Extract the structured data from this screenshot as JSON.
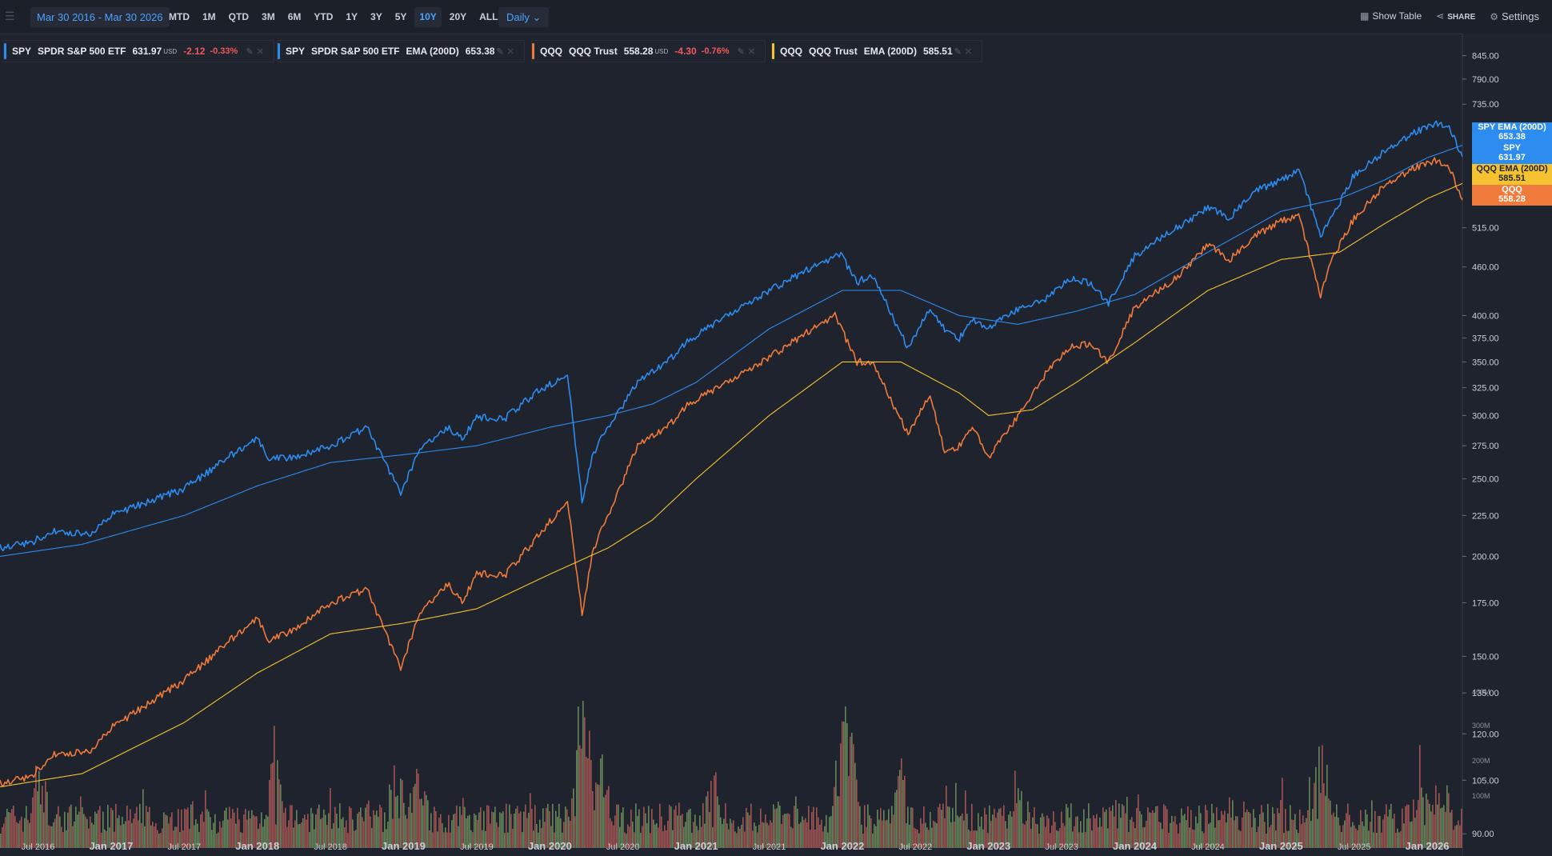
{
  "toolbar": {
    "date_range": "Mar 30 2016 - Mar 30 2026",
    "periods": [
      "MTD",
      "1M",
      "QTD",
      "3M",
      "6M",
      "YTD",
      "1Y",
      "3Y",
      "5Y",
      "10Y",
      "20Y",
      "ALL"
    ],
    "active_period": "10Y",
    "interval": "Daily",
    "show_table": "Show Table",
    "share": "SHARE",
    "settings": "Settings"
  },
  "legend": [
    {
      "symbol": "SPY",
      "name": "SPDR S&P 500 ETF",
      "value": "631.97",
      "unit": "USD",
      "change": "-2.12",
      "pct": "-0.33%",
      "color": "#2d8cf0"
    },
    {
      "symbol": "SPY",
      "name": "SPDR S&P 500 ETF",
      "indicator": "EMA (200D)",
      "value": "653.38",
      "color": "#2d8cf0"
    },
    {
      "symbol": "QQQ",
      "name": "QQQ Trust",
      "value": "558.28",
      "unit": "USD",
      "change": "-4.30",
      "pct": "-0.76%",
      "color": "#f07a3a"
    },
    {
      "symbol": "QQQ",
      "name": "QQQ Trust",
      "indicator": "EMA (200D)",
      "value": "585.51",
      "color": "#f5c232"
    }
  ],
  "price_tags": [
    {
      "label": "SPY EMA (200D)",
      "value": "653.38",
      "bg": "#2d8cf0",
      "fg": "#ffffff"
    },
    {
      "label": "SPY",
      "value": "631.97",
      "bg": "#2d8cf0",
      "fg": "#ffffff"
    },
    {
      "label": "QQQ EMA (200D)",
      "value": "585.51",
      "bg": "#f5c232",
      "fg": "#1f232d"
    },
    {
      "label": "QQQ",
      "value": "558.28",
      "bg": "#f07a3a",
      "fg": "#ffffff"
    }
  ],
  "chart_data": {
    "type": "line",
    "scale": "log",
    "y_ticks": [
      "845.00",
      "790.00",
      "735.00",
      "515.00",
      "460.00",
      "400.00",
      "375.00",
      "350.00",
      "325.00",
      "300.00",
      "275.00",
      "250.00",
      "225.00",
      "200.00",
      "175.00",
      "150.00",
      "135.00",
      "120.00",
      "105.00",
      "90.00"
    ],
    "y_tick_values": [
      845,
      790,
      735,
      515,
      460,
      400,
      375,
      350,
      325,
      300,
      275,
      250,
      225,
      200,
      175,
      150,
      135,
      120,
      105,
      90
    ],
    "ylim": [
      88,
      880
    ],
    "x_ticks": [
      "Jul 2016",
      "Jan 2017",
      "Jul 2017",
      "Jan 2018",
      "Jul 2018",
      "Jan 2019",
      "Jul 2019",
      "Jan 2020",
      "Jul 2020",
      "Jan 2021",
      "Jul 2021",
      "Jan 2022",
      "Jul 2022",
      "Jan 2023",
      "Jul 2023",
      "Jan 2024",
      "Jul 2024",
      "Jan 2025",
      "Jul 2025",
      "Jan 2026"
    ],
    "x_tick_bold": [
      false,
      true,
      false,
      true,
      false,
      true,
      false,
      true,
      false,
      true,
      false,
      true,
      false,
      true,
      false,
      true,
      false,
      true,
      false,
      true
    ],
    "x_tick_values": [
      2016.5,
      2017.0,
      2017.5,
      2018.0,
      2018.5,
      2019.0,
      2019.5,
      2020.0,
      2020.5,
      2021.0,
      2021.5,
      2022.0,
      2022.5,
      2023.0,
      2023.5,
      2024.0,
      2024.5,
      2025.0,
      2025.5,
      2026.0
    ],
    "xlim": [
      2016.24,
      2026.24
    ],
    "volume_ticks": [
      "400M",
      "300M",
      "200M",
      "100M"
    ],
    "series": [
      {
        "name": "SPY",
        "color": "#2d8cf0",
        "x": [
          2016.24,
          2016.45,
          2016.6,
          2016.85,
          2017.0,
          2017.5,
          2018.0,
          2018.08,
          2018.2,
          2018.5,
          2018.75,
          2018.98,
          2019.1,
          2019.3,
          2019.4,
          2019.5,
          2019.7,
          2019.9,
          2020.12,
          2020.22,
          2020.3,
          2020.4,
          2020.6,
          2020.8,
          2020.95,
          2021.2,
          2021.5,
          2021.8,
          2021.99,
          2022.1,
          2022.2,
          2022.45,
          2022.6,
          2022.7,
          2022.8,
          2022.9,
          2023.0,
          2023.2,
          2023.4,
          2023.55,
          2023.7,
          2023.82,
          2024.0,
          2024.25,
          2024.5,
          2024.65,
          2024.8,
          2025.0,
          2025.12,
          2025.27,
          2025.35,
          2025.5,
          2025.7,
          2025.9,
          2026.05,
          2026.15,
          2026.24
        ],
        "values": [
          205,
          208,
          215,
          213,
          225,
          243,
          282,
          265,
          265,
          275,
          290,
          240,
          270,
          290,
          280,
          298,
          298,
          320,
          338,
          235,
          270,
          290,
          330,
          350,
          372,
          400,
          430,
          460,
          477,
          440,
          450,
          365,
          410,
          385,
          375,
          395,
          385,
          408,
          420,
          445,
          440,
          415,
          475,
          510,
          545,
          530,
          570,
          590,
          610,
          505,
          530,
          600,
          640,
          675,
          695,
          690,
          632
        ]
      },
      {
        "name": "SPY EMA (200D)",
        "color": "#2d8cf0",
        "thin": true,
        "x": [
          2016.24,
          2016.8,
          2017.5,
          2018.0,
          2018.5,
          2019.0,
          2019.5,
          2020.0,
          2020.4,
          2020.7,
          2021.0,
          2021.5,
          2022.0,
          2022.4,
          2022.8,
          2023.2,
          2023.6,
          2024.0,
          2024.5,
          2025.0,
          2025.4,
          2025.7,
          2026.0,
          2026.24
        ],
        "values": [
          200,
          207,
          225,
          245,
          262,
          268,
          275,
          290,
          300,
          310,
          330,
          385,
          430,
          430,
          400,
          390,
          405,
          425,
          480,
          540,
          560,
          590,
          630,
          653
        ]
      },
      {
        "name": "QQQ",
        "color": "#f07a3a",
        "x": [
          2016.24,
          2016.45,
          2016.6,
          2016.85,
          2017.0,
          2017.5,
          2018.0,
          2018.08,
          2018.2,
          2018.5,
          2018.75,
          2018.98,
          2019.1,
          2019.3,
          2019.4,
          2019.5,
          2019.7,
          2019.9,
          2020.12,
          2020.22,
          2020.3,
          2020.4,
          2020.6,
          2020.8,
          2020.95,
          2021.2,
          2021.5,
          2021.8,
          2021.95,
          2022.1,
          2022.2,
          2022.45,
          2022.6,
          2022.7,
          2022.8,
          2022.9,
          2023.0,
          2023.2,
          2023.4,
          2023.55,
          2023.7,
          2023.82,
          2024.0,
          2024.25,
          2024.5,
          2024.65,
          2024.8,
          2025.0,
          2025.12,
          2025.27,
          2025.35,
          2025.5,
          2025.7,
          2025.9,
          2026.05,
          2026.15,
          2026.24
        ],
        "values": [
          104,
          106,
          113,
          114,
          122,
          140,
          168,
          157,
          160,
          175,
          182,
          145,
          168,
          185,
          175,
          190,
          190,
          210,
          235,
          170,
          205,
          225,
          275,
          290,
          310,
          330,
          355,
          385,
          400,
          350,
          350,
          285,
          320,
          270,
          275,
          290,
          265,
          300,
          340,
          365,
          370,
          350,
          410,
          440,
          490,
          470,
          500,
          525,
          535,
          425,
          470,
          530,
          580,
          610,
          625,
          615,
          558
        ]
      },
      {
        "name": "QQQ EMA (200D)",
        "color": "#f5c232",
        "thin": true,
        "x": [
          2016.24,
          2016.8,
          2017.5,
          2018.0,
          2018.5,
          2019.0,
          2019.5,
          2020.0,
          2020.4,
          2020.7,
          2021.0,
          2021.5,
          2022.0,
          2022.4,
          2022.8,
          2023.0,
          2023.3,
          2023.6,
          2024.0,
          2024.5,
          2025.0,
          2025.4,
          2025.7,
          2026.0,
          2026.24
        ],
        "values": [
          103,
          107,
          124,
          143,
          160,
          165,
          172,
          190,
          205,
          222,
          250,
          300,
          350,
          350,
          320,
          300,
          305,
          330,
          370,
          430,
          470,
          480,
          520,
          560,
          585
        ]
      }
    ]
  }
}
